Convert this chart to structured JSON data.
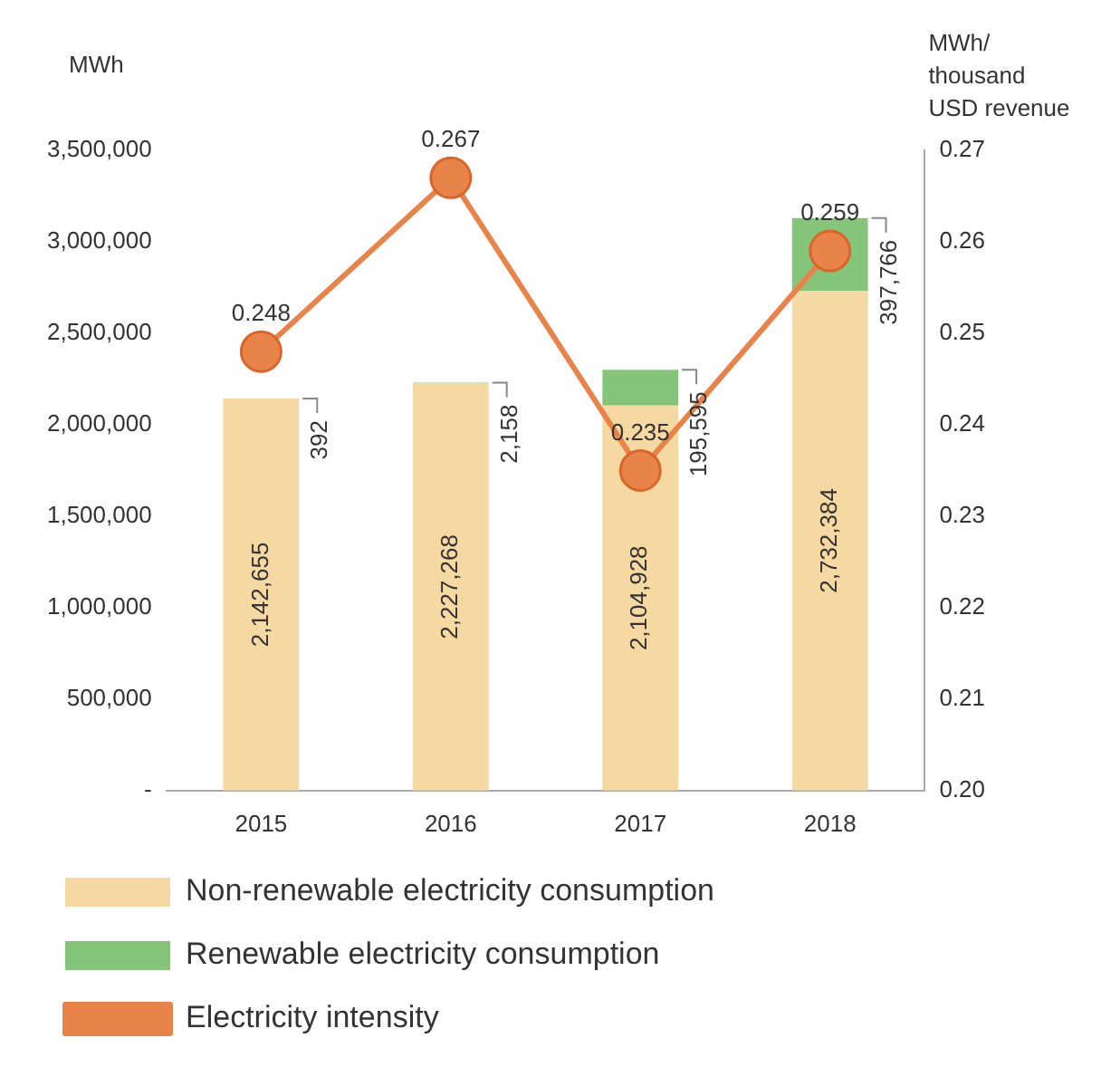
{
  "chart_data": {
    "type": "bar",
    "ylabel": "MWh",
    "y2label": "MWh/ thousand USD revenue",
    "categories": [
      "2015",
      "2016",
      "2017",
      "2018"
    ],
    "stacked": true,
    "grid": false,
    "legend": "bottom",
    "ylim": [
      0,
      3500000
    ],
    "yticks": [
      {
        "value": 0,
        "label": "-"
      },
      {
        "value": 500000,
        "label": "500,000"
      },
      {
        "value": 1000000,
        "label": "1,000,000"
      },
      {
        "value": 1500000,
        "label": "1,500,000"
      },
      {
        "value": 2000000,
        "label": "2,000,000"
      },
      {
        "value": 2500000,
        "label": "2,500,000"
      },
      {
        "value": 3000000,
        "label": "3,000,000"
      },
      {
        "value": 3500000,
        "label": "3,500,000"
      }
    ],
    "y2lim": [
      0.2,
      0.27
    ],
    "y2ticks": [
      {
        "value": 0.2,
        "label": "0.20"
      },
      0.21,
      0.22,
      0.23,
      0.24,
      0.25,
      0.26,
      0.27
    ],
    "series": [
      {
        "name": "Non-renewable electricity consumption",
        "color": "#f6d9a2",
        "values": [
          2142655,
          2227268,
          2104928,
          2732384
        ],
        "value_labels": [
          "2,142,655",
          "2,227,268",
          "2,104,928",
          "2,732,384"
        ]
      },
      {
        "name": "Renewable electricity consumption",
        "color": "#84c57a",
        "values": [
          392,
          2158,
          195595,
          397766
        ],
        "value_labels": [
          "392",
          "2,158",
          "195,595",
          "397,766"
        ]
      },
      {
        "name": "Electricity intensity",
        "type": "line",
        "axis": "y2",
        "color": "#e8834a",
        "marker": "circle",
        "line_style": "solid",
        "values": [
          0.248,
          0.267,
          0.235,
          0.259
        ],
        "value_labels": [
          "0.248",
          "0.267",
          "0.235",
          "0.259"
        ]
      }
    ]
  }
}
